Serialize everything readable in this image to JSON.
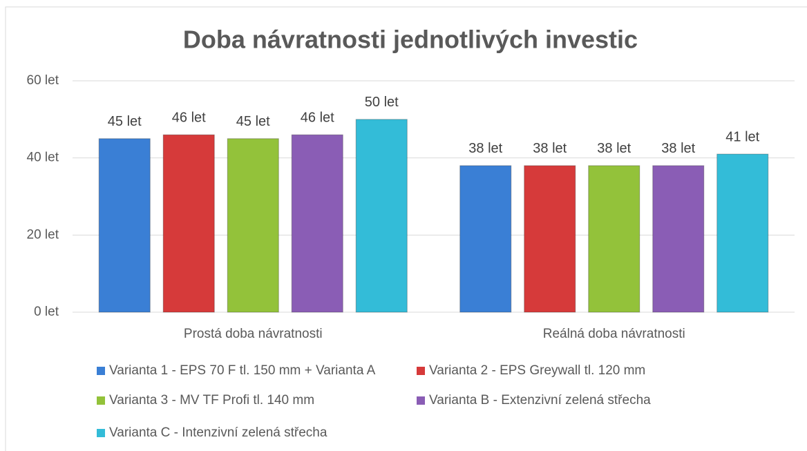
{
  "chart_data": {
    "type": "bar",
    "title": "Doba návratnosti jednotlivých investic",
    "categories": [
      "Prostá doba návratnosti",
      "Reálná doba návratnosti"
    ],
    "series": [
      {
        "name": "Varianta 1 - EPS 70 F tl. 150 mm + Varianta A",
        "color": "#3a7fd5",
        "values": [
          45,
          38
        ],
        "value_labels": [
          "45 let",
          "38 let"
        ]
      },
      {
        "name": "Varianta 2 - EPS Greywall tl. 120 mm",
        "color": "#d63a3a",
        "values": [
          46,
          38
        ],
        "value_labels": [
          "46 let",
          "38 let"
        ]
      },
      {
        "name": "Varianta 3 - MV TF Profi tl. 140 mm",
        "color": "#93c23a",
        "values": [
          45,
          38
        ],
        "value_labels": [
          "45 let",
          "38 let"
        ]
      },
      {
        "name": "Varianta B - Extenzivní zelená střecha",
        "color": "#8a5db5",
        "values": [
          46,
          38
        ],
        "value_labels": [
          "46 let",
          "38 let"
        ]
      },
      {
        "name": "Varianta C - Intenzivní zelená střecha",
        "color": "#33bcd8",
        "values": [
          50,
          41
        ],
        "value_labels": [
          "50 let",
          "41 let"
        ]
      }
    ],
    "ylim": [
      0,
      60
    ],
    "yticks": [
      {
        "value": 0,
        "label": "0 let"
      },
      {
        "value": 20,
        "label": "20 let"
      },
      {
        "value": 40,
        "label": "40 let"
      },
      {
        "value": 60,
        "label": "60 let"
      }
    ],
    "grid": true,
    "legend": "bottom"
  }
}
